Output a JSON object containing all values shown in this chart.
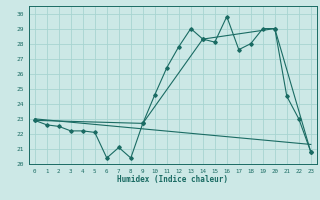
{
  "title": "",
  "xlabel": "Humidex (Indice chaleur)",
  "ylabel": "",
  "background_color": "#cce8e6",
  "grid_color": "#a8d4d1",
  "line_color": "#1a6b63",
  "xlim": [
    -0.5,
    23.5
  ],
  "ylim": [
    20,
    30.5
  ],
  "xticks": [
    0,
    1,
    2,
    3,
    4,
    5,
    6,
    7,
    8,
    9,
    10,
    11,
    12,
    13,
    14,
    15,
    16,
    17,
    18,
    19,
    20,
    21,
    22,
    23
  ],
  "yticks": [
    20,
    21,
    22,
    23,
    24,
    25,
    26,
    27,
    28,
    29,
    30
  ],
  "series1_x": [
    0,
    1,
    2,
    3,
    4,
    5,
    6,
    7,
    8,
    9,
    10,
    11,
    12,
    13,
    14,
    15,
    16,
    17,
    18,
    19,
    20,
    21,
    22,
    23
  ],
  "series1_y": [
    22.9,
    22.6,
    22.5,
    22.2,
    22.2,
    22.1,
    20.4,
    21.1,
    20.4,
    22.7,
    24.6,
    26.4,
    27.8,
    29.0,
    28.3,
    28.1,
    29.8,
    27.6,
    28.0,
    29.0,
    29.0,
    24.5,
    23.0,
    20.8
  ],
  "series2_x": [
    0,
    9,
    14,
    20,
    23
  ],
  "series2_y": [
    22.9,
    22.7,
    28.3,
    29.0,
    20.8
  ],
  "series3_x": [
    0,
    23
  ],
  "series3_y": [
    23.0,
    21.3
  ]
}
